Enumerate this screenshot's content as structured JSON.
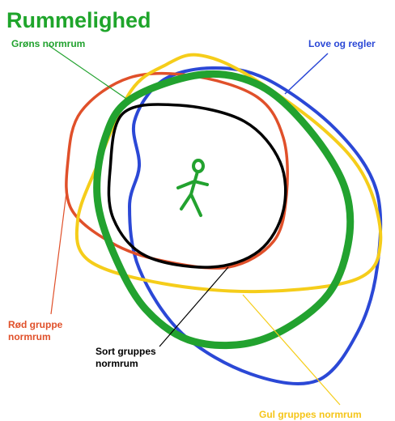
{
  "title": "Rummelighed",
  "labels": {
    "green": "Grøns normrum",
    "blue": "Love og regler",
    "red": [
      "Rød gruppe",
      "normrum"
    ],
    "black": [
      "Sort gruppes",
      "normrum"
    ],
    "yellow": "Gul gruppes normrum"
  }
}
